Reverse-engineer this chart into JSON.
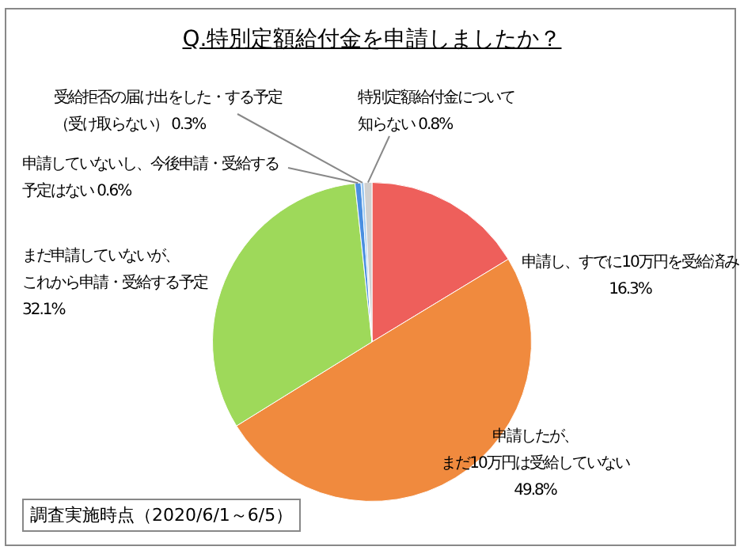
{
  "chart_data": {
    "type": "pie",
    "title": "Q.特別定額給付金を申請しましたか？",
    "categories": [
      "申請し、すでに10万円を受給済み",
      "申請したが、まだ10万円は受給していない",
      "まだ申請していないが、これから申請・受給する予定",
      "申請していないし、今後申請・受給する予定はない",
      "受給拒否の届け出をした・する予定（受け取らない）",
      "特別定額給付金について知らない"
    ],
    "values": [
      16.3,
      49.8,
      32.1,
      0.6,
      0.3,
      0.8
    ],
    "value_labels": [
      "16.3%",
      "49.8%",
      "32.1%",
      "0.6%",
      "0.3%",
      "0.8%"
    ],
    "colors": [
      "#ee5f5b",
      "#f08a3e",
      "#9ed95a",
      "#4a8fe0",
      "#9cc8f0",
      "#d0d0d0"
    ],
    "annotations": [
      "調査実施時点（2020/6/1～6/5）"
    ],
    "legend": false
  }
}
